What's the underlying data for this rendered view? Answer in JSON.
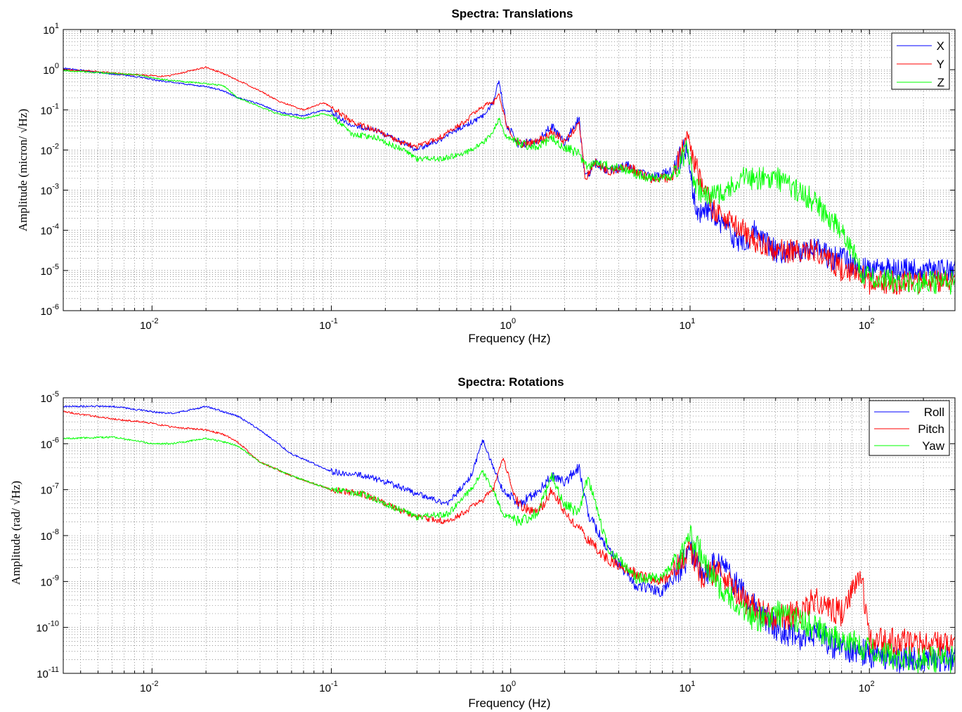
{
  "chart_data": [
    {
      "type": "line",
      "title": "Spectra: Translations",
      "xlabel": "Frequency (Hz)",
      "ylabel": "Amplitude (micron/ √Hz)",
      "xscale": "log",
      "yscale": "log",
      "xlim": [
        0.0032,
        300
      ],
      "ylim": [
        1e-06,
        10
      ],
      "grid": "on (major and minor, dotted)",
      "legend_position": "top-right",
      "x_tick_labels": [
        "10^-2",
        "10^-1",
        "10^0",
        "10^1",
        "10^2"
      ],
      "y_tick_labels": [
        "10^-6",
        "10^-5",
        "10^-4",
        "10^-3",
        "10^-2",
        "10^-1",
        "10^0",
        "10^1"
      ],
      "x": [
        0.0032,
        0.005,
        0.008,
        0.012,
        0.02,
        0.025,
        0.03,
        0.04,
        0.05,
        0.07,
        0.09,
        0.1,
        0.13,
        0.18,
        0.25,
        0.3,
        0.4,
        0.55,
        0.7,
        0.8,
        0.86,
        0.95,
        1.1,
        1.4,
        1.7,
        2.0,
        2.4,
        2.6,
        3.0,
        3.5,
        4.5,
        6,
        8,
        9.5,
        11,
        13,
        16,
        20,
        23,
        30,
        40,
        50,
        60,
        70,
        90,
        100,
        150,
        200,
        300
      ],
      "series": [
        {
          "name": "X",
          "color": "#0000ff",
          "values": [
            1.1,
            0.85,
            0.68,
            0.5,
            0.38,
            0.3,
            0.2,
            0.14,
            0.09,
            0.07,
            0.1,
            0.09,
            0.04,
            0.03,
            0.015,
            0.01,
            0.018,
            0.04,
            0.07,
            0.15,
            0.55,
            0.04,
            0.015,
            0.015,
            0.04,
            0.015,
            0.06,
            0.002,
            0.005,
            0.003,
            0.004,
            0.002,
            0.003,
            0.012,
            0.0002,
            0.0003,
            0.0001,
            4e-05,
            0.0001,
            3e-05,
            3e-05,
            4e-05,
            2e-05,
            2e-05,
            1e-05,
            1.1e-05,
            1.1e-05,
            1e-05,
            1e-05
          ]
        },
        {
          "name": "Y",
          "color": "#ff0000",
          "values": [
            1.0,
            0.9,
            0.75,
            0.68,
            1.15,
            0.8,
            0.55,
            0.3,
            0.17,
            0.1,
            0.15,
            0.12,
            0.05,
            0.03,
            0.015,
            0.012,
            0.02,
            0.05,
            0.12,
            0.15,
            0.25,
            0.04,
            0.015,
            0.015,
            0.03,
            0.015,
            0.05,
            0.002,
            0.005,
            0.003,
            0.004,
            0.002,
            0.002,
            0.02,
            0.003,
            0.0004,
            0.0002,
            0.0001,
            5e-05,
            3e-05,
            3e-05,
            3e-05,
            2e-05,
            1e-05,
            8e-06,
            5e-06,
            5e-06,
            5e-06,
            5e-06
          ]
        },
        {
          "name": "Z",
          "color": "#00ff00",
          "values": [
            0.95,
            0.85,
            0.75,
            0.55,
            0.45,
            0.4,
            0.2,
            0.12,
            0.08,
            0.06,
            0.08,
            0.07,
            0.025,
            0.02,
            0.01,
            0.006,
            0.006,
            0.008,
            0.015,
            0.03,
            0.06,
            0.02,
            0.015,
            0.012,
            0.02,
            0.012,
            0.008,
            0.004,
            0.005,
            0.004,
            0.003,
            0.002,
            0.002,
            0.01,
            0.001,
            0.0008,
            0.001,
            0.002,
            0.002,
            0.002,
            0.001,
            0.0005,
            0.0002,
            0.0001,
            1e-05,
            6e-06,
            5e-06,
            5e-06,
            5e-06
          ]
        }
      ]
    },
    {
      "type": "line",
      "title": "Spectra: Rotations",
      "xlabel": "Frequency (Hz)",
      "ylabel": "Amplitude (rad/ √Hz)",
      "xscale": "log",
      "yscale": "log",
      "xlim": [
        0.0032,
        300
      ],
      "ylim": [
        1e-11,
        1e-05
      ],
      "grid": "on (major and minor, dotted)",
      "legend_position": "top-right",
      "x_tick_labels": [
        "10^-2",
        "10^-1",
        "10^0",
        "10^1",
        "10^2"
      ],
      "y_tick_labels": [
        "10^-11",
        "10^-10",
        "10^-9",
        "10^-8",
        "10^-7",
        "10^-6",
        "10^-5"
      ],
      "x": [
        0.0032,
        0.006,
        0.01,
        0.013,
        0.02,
        0.025,
        0.03,
        0.04,
        0.06,
        0.1,
        0.15,
        0.2,
        0.3,
        0.45,
        0.6,
        0.7,
        0.8,
        0.9,
        1.1,
        1.4,
        1.7,
        2.0,
        2.4,
        2.7,
        3.5,
        5,
        7,
        9.5,
        10,
        12,
        14,
        20,
        25,
        30,
        40,
        50,
        70,
        90,
        100,
        150,
        200,
        300
      ],
      "series": [
        {
          "name": "Roll",
          "color": "#0000ff",
          "values": [
            6.5e-06,
            6.5e-06,
            5e-06,
            4.5e-06,
            6.5e-06,
            5e-06,
            4e-06,
            2e-06,
            6e-07,
            2.5e-07,
            2e-07,
            1.5e-07,
            8e-08,
            5e-08,
            2e-07,
            1.2e-06,
            3e-07,
            1e-07,
            5e-08,
            8e-08,
            2e-07,
            1.5e-07,
            3e-07,
            3e-08,
            5e-09,
            8e-10,
            6e-10,
            3e-09,
            6e-09,
            1e-09,
            3e-09,
            5e-10,
            2e-10,
            1e-10,
            6e-11,
            8e-11,
            3e-11,
            3e-11,
            2.5e-11,
            2e-11,
            2e-11,
            2e-11
          ]
        },
        {
          "name": "Pitch",
          "color": "#ff0000",
          "values": [
            5e-06,
            3.5e-06,
            2.8e-06,
            2.3e-06,
            2e-06,
            1.6e-06,
            1.1e-06,
            4e-07,
            2e-07,
            1e-07,
            8e-08,
            5e-08,
            2.5e-08,
            2e-08,
            4e-08,
            6e-08,
            1e-07,
            5e-07,
            5e-08,
            3e-08,
            1e-07,
            3e-08,
            1.5e-08,
            8e-09,
            3e-09,
            1.5e-09,
            1e-09,
            3e-09,
            5e-09,
            1e-09,
            2e-09,
            4e-10,
            2e-10,
            1.5e-10,
            2e-10,
            4e-10,
            2e-10,
            1.5e-09,
            5e-11,
            5e-11,
            4e-11,
            4e-11
          ]
        },
        {
          "name": "Yaw",
          "color": "#00ff00",
          "values": [
            1.3e-06,
            1.4e-06,
            1e-06,
            1e-06,
            1.3e-06,
            1.1e-06,
            9e-07,
            4e-07,
            2e-07,
            1e-07,
            8e-08,
            5e-08,
            2.5e-08,
            3e-08,
            1e-07,
            2.5e-07,
            1e-07,
            3e-08,
            2e-08,
            3e-08,
            2e-07,
            5e-08,
            3e-08,
            2e-07,
            5e-09,
            1.2e-09,
            1.2e-09,
            5e-09,
            1e-08,
            3e-09,
            1e-09,
            2e-10,
            1.5e-10,
            2e-10,
            1.5e-10,
            1e-10,
            5e-11,
            4e-11,
            3e-11,
            2e-11,
            2e-11,
            2e-11
          ]
        }
      ]
    }
  ]
}
